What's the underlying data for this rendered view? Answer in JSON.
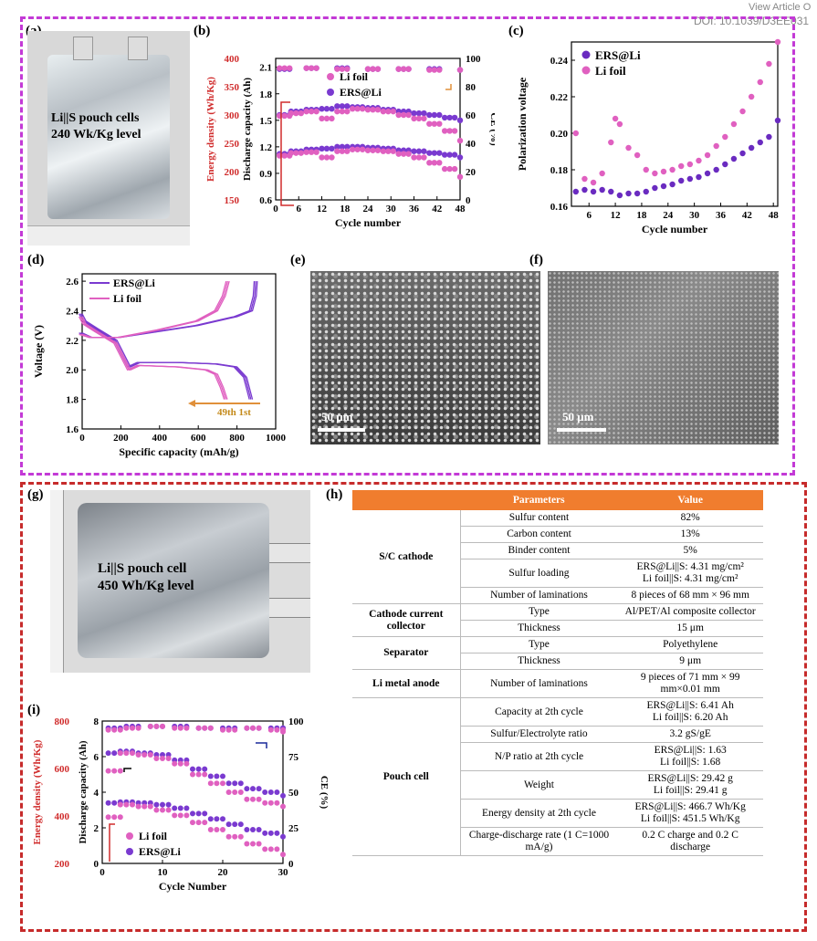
{
  "header": {
    "line1": "View Article O",
    "line2": "DOI: 10.1039/D3EE031"
  },
  "panels": {
    "a": {
      "label": "(a)",
      "caption1": "Li||S pouch cells",
      "caption2": "240 Wk/Kg level"
    },
    "b": {
      "label": "(b)"
    },
    "c": {
      "label": "(c)"
    },
    "d": {
      "label": "(d)"
    },
    "e": {
      "label": "(e)",
      "scale": "50 μm"
    },
    "f": {
      "label": "(f)",
      "scale": "50 μm"
    },
    "g": {
      "label": "(g)",
      "caption1": "Li||S pouch cell",
      "caption2": "450 Wh/Kg level"
    },
    "h": {
      "label": "(h)"
    },
    "i": {
      "label": "(i)"
    }
  },
  "table": {
    "headers": [
      "Parameters",
      "Value"
    ],
    "rows": [
      {
        "group": "S/C cathode",
        "span": 5,
        "param": "Sulfur content",
        "value": "82%"
      },
      {
        "param": "Carbon content",
        "value": "13%"
      },
      {
        "param": "Binder content",
        "value": "5%"
      },
      {
        "param": "Sulfur loading",
        "value": "ERS@Li||S: 4.31 mg/cm² / Li foil||S: 4.31 mg/cm²"
      },
      {
        "param": "Number of laminations",
        "value": "8 pieces of 68 mm × 96 mm"
      },
      {
        "group": "Cathode current collector",
        "span": 2,
        "param": "Type",
        "value": "Al/PET/Al composite collector"
      },
      {
        "param": "Thickness",
        "value": "15 μm"
      },
      {
        "group": "Separator",
        "span": 2,
        "param": "Type",
        "value": "Polyethylene"
      },
      {
        "param": "Thickness",
        "value": "9 μm"
      },
      {
        "group": "Li metal anode",
        "span": 1,
        "param": "Number of laminations",
        "value": "9 pieces of 71 mm × 99 mm×0.01 mm"
      },
      {
        "group": "Pouch cell",
        "span": 7,
        "param": "Capacity at 2th cycle",
        "value": "ERS@Li||S: 6.41 Ah / Li foil||S: 6.20 Ah"
      },
      {
        "param": "Sulfur/Electrolyte ratio",
        "value": "3.2 gS/gE"
      },
      {
        "param": "N/P ratio at 2th cycle",
        "value": "ERS@Li||S: 1.63 / Li foil||S: 1.68"
      },
      {
        "param": "Weight",
        "value": "ERS@Li||S: 29.42 g / Li foil||S: 29.41 g"
      },
      {
        "param": "Energy density at 2th cycle",
        "value": "ERS@Li||S: 466.7 Wh/Kg / Li foil||S: 451.5 Wh/Kg"
      },
      {
        "param": "Charge-discharge rate (1 C=1000 mA/g)",
        "value": "0.2 C charge and 0.2 C discharge"
      }
    ]
  },
  "chart_data": [
    {
      "id": "b",
      "type": "scatter",
      "xlabel": "Cycle number",
      "xlim": [
        0,
        48
      ],
      "xticks": [
        0,
        6,
        12,
        18,
        24,
        30,
        36,
        42,
        48
      ],
      "ylabel": "Discharge capacity (Ah)",
      "ylim": [
        0.6,
        2.2
      ],
      "yticks": [
        "0.6",
        "0.9",
        "1.2",
        "1.5",
        "1.8",
        "2.1"
      ],
      "y2label": "CE (%)",
      "y2ticks": [
        "0",
        "20",
        "40",
        "60",
        "80",
        "100"
      ],
      "y3label": "Energy density (Wh/Kg)",
      "y3ticks": [
        "150",
        "200",
        "250",
        "300",
        "350",
        "400"
      ],
      "legend": [
        "Li foil",
        "ERS@Li"
      ],
      "colors": {
        "Li foil": "#e060c0",
        "ERS@Li": "#7a3ad0"
      },
      "series": [
        {
          "name": "ERS@Li",
          "metric": "capacity",
          "x": [
            1,
            4,
            8,
            12,
            16,
            20,
            24,
            28,
            32,
            36,
            40,
            44,
            48
          ],
          "y": [
            1.12,
            1.15,
            1.17,
            1.18,
            1.2,
            1.2,
            1.19,
            1.18,
            1.16,
            1.15,
            1.13,
            1.11,
            1.08
          ]
        },
        {
          "name": "Li foil",
          "metric": "capacity",
          "x": [
            1,
            4,
            8,
            12,
            16,
            20,
            24,
            28,
            32,
            36,
            40,
            44,
            48
          ],
          "y": [
            1.1,
            1.13,
            1.14,
            1.08,
            1.15,
            1.17,
            1.16,
            1.15,
            1.12,
            1.08,
            1.02,
            0.95,
            0.86
          ]
        },
        {
          "name": "ERS@Li",
          "metric": "energy",
          "x": [
            1,
            4,
            8,
            12,
            16,
            20,
            24,
            28,
            32,
            36,
            40,
            44,
            48
          ],
          "y": [
            1.56,
            1.6,
            1.62,
            1.63,
            1.66,
            1.65,
            1.64,
            1.62,
            1.6,
            1.58,
            1.56,
            1.53,
            1.5
          ]
        },
        {
          "name": "Li foil",
          "metric": "energy",
          "x": [
            1,
            4,
            8,
            12,
            16,
            20,
            24,
            28,
            32,
            36,
            40,
            44,
            48
          ],
          "y": [
            1.55,
            1.58,
            1.6,
            1.52,
            1.6,
            1.63,
            1.62,
            1.6,
            1.56,
            1.52,
            1.46,
            1.38,
            1.27
          ]
        },
        {
          "name": "ERS@Li",
          "metric": "CE",
          "x": [
            1,
            8,
            16,
            24,
            32,
            40,
            48
          ],
          "y": [
            2.08,
            2.09,
            2.09,
            2.08,
            2.08,
            2.08,
            2.07
          ]
        },
        {
          "name": "Li foil",
          "metric": "CE",
          "x": [
            1,
            8,
            16,
            24,
            32,
            40,
            48
          ],
          "y": [
            2.09,
            2.09,
            2.08,
            2.08,
            2.08,
            2.07,
            2.07
          ]
        }
      ]
    },
    {
      "id": "c",
      "type": "scatter",
      "xlabel": "Cycle number",
      "xlim": [
        2,
        49
      ],
      "xticks": [
        6,
        12,
        18,
        24,
        30,
        36,
        42,
        48
      ],
      "ylabel": "Polarization voltage",
      "ylim": [
        0.16,
        0.25
      ],
      "yticks": [
        "0.16",
        "0.18",
        "0.20",
        "0.22",
        "0.24"
      ],
      "legend": [
        "ERS@Li",
        "Li foil"
      ],
      "colors": {
        "ERS@Li": "#6a2bc0",
        "Li foil": "#e060c0"
      },
      "series": [
        {
          "name": "ERS@Li",
          "x": [
            3,
            5,
            7,
            9,
            11,
            13,
            15,
            17,
            19,
            21,
            23,
            25,
            27,
            29,
            31,
            33,
            35,
            37,
            39,
            41,
            43,
            45,
            47,
            49
          ],
          "y": [
            0.168,
            0.169,
            0.168,
            0.169,
            0.168,
            0.166,
            0.167,
            0.167,
            0.168,
            0.17,
            0.171,
            0.172,
            0.174,
            0.175,
            0.176,
            0.178,
            0.18,
            0.183,
            0.186,
            0.189,
            0.192,
            0.195,
            0.198,
            0.207
          ]
        },
        {
          "name": "Li foil",
          "x": [
            3,
            5,
            7,
            9,
            11,
            12,
            13,
            15,
            17,
            19,
            21,
            23,
            25,
            27,
            29,
            31,
            33,
            35,
            37,
            39,
            41,
            43,
            45,
            47,
            49
          ],
          "y": [
            0.2,
            0.175,
            0.173,
            0.178,
            0.195,
            0.208,
            0.205,
            0.192,
            0.188,
            0.18,
            0.178,
            0.179,
            0.18,
            0.182,
            0.183,
            0.185,
            0.188,
            0.193,
            0.198,
            0.205,
            0.212,
            0.22,
            0.228,
            0.238,
            0.25
          ]
        }
      ]
    },
    {
      "id": "d",
      "type": "line",
      "xlabel": "Specific capacity (mAh/g)",
      "xlim": [
        0,
        1000
      ],
      "xticks": [
        0,
        200,
        400,
        600,
        800,
        1000
      ],
      "ylabel": "Voltage (V)",
      "ylim": [
        1.6,
        2.65
      ],
      "yticks": [
        "1.6",
        "1.8",
        "2.0",
        "2.2",
        "2.4",
        "2.6"
      ],
      "legend": [
        "ERS@Li",
        "Li foil"
      ],
      "annotation": "49th  1st",
      "colors": {
        "ERS@Li": "#7a3ad0",
        "Li foil": "#e060c0"
      },
      "series": [
        {
          "name": "ERS@Li",
          "branch": "discharge",
          "x": [
            0,
            20,
            80,
            180,
            250,
            300,
            500,
            700,
            800,
            850,
            880
          ],
          "y": [
            2.38,
            2.33,
            2.28,
            2.2,
            2.02,
            2.05,
            2.05,
            2.04,
            2.02,
            1.95,
            1.8
          ]
        },
        {
          "name": "ERS@Li",
          "branch": "charge",
          "x": [
            0,
            50,
            200,
            400,
            600,
            800,
            880,
            900,
            905
          ],
          "y": [
            2.25,
            2.22,
            2.22,
            2.26,
            2.3,
            2.36,
            2.4,
            2.5,
            2.6
          ]
        },
        {
          "name": "Li foil",
          "branch": "discharge",
          "x": [
            0,
            20,
            80,
            180,
            250,
            300,
            500,
            650,
            700,
            730,
            750
          ],
          "y": [
            2.36,
            2.31,
            2.26,
            2.18,
            2.0,
            2.03,
            2.02,
            2.0,
            1.97,
            1.88,
            1.8
          ]
        },
        {
          "name": "Li foil",
          "branch": "charge",
          "x": [
            0,
            50,
            200,
            400,
            600,
            700,
            740,
            760
          ],
          "y": [
            2.24,
            2.22,
            2.22,
            2.27,
            2.33,
            2.4,
            2.5,
            2.6
          ]
        }
      ]
    },
    {
      "id": "i",
      "type": "scatter",
      "xlabel": "Cycle Number",
      "xlim": [
        0,
        30
      ],
      "xticks": [
        0,
        10,
        20,
        30
      ],
      "ylabel": "Discharge capacity (Ah)",
      "ylim": [
        0,
        8
      ],
      "yticks": [
        "0",
        "2",
        "4",
        "6",
        "8"
      ],
      "y2label": "CE (%)",
      "y2ticks": [
        "0",
        "25",
        "50",
        "75",
        "100"
      ],
      "y3label": "Energy density (Wh/Kg)",
      "y3ticks": [
        "200",
        "400",
        "600",
        "800"
      ],
      "legend": [
        "Li foil",
        "ERS@Li"
      ],
      "colors": {
        "Li foil": "#e060c0",
        "ERS@Li": "#7a3ad0"
      },
      "series": [
        {
          "name": "ERS@Li",
          "metric": "energy",
          "x": [
            1,
            3,
            6,
            9,
            12,
            15,
            18,
            21,
            24,
            27,
            30
          ],
          "y": [
            6.2,
            6.3,
            6.2,
            6.1,
            5.8,
            5.3,
            4.9,
            4.5,
            4.2,
            4.0,
            3.8
          ]
        },
        {
          "name": "Li foil",
          "metric": "energy",
          "x": [
            1,
            3,
            6,
            9,
            12,
            15,
            18,
            21,
            24,
            27,
            30
          ],
          "y": [
            5.2,
            6.2,
            6.1,
            5.9,
            5.6,
            5.0,
            4.5,
            4.0,
            3.6,
            3.4,
            3.2
          ]
        },
        {
          "name": "ERS@Li",
          "metric": "capacity",
          "x": [
            1,
            3,
            6,
            9,
            12,
            15,
            18,
            21,
            24,
            27,
            30
          ],
          "y": [
            3.4,
            3.45,
            3.4,
            3.3,
            3.1,
            2.8,
            2.5,
            2.2,
            1.9,
            1.7,
            1.5
          ]
        },
        {
          "name": "Li foil",
          "metric": "capacity",
          "x": [
            1,
            3,
            6,
            9,
            12,
            15,
            18,
            21,
            24,
            27,
            30
          ],
          "y": [
            2.6,
            3.3,
            3.2,
            3.0,
            2.7,
            2.3,
            1.9,
            1.5,
            1.1,
            0.8,
            0.5
          ]
        },
        {
          "name": "ERS@Li",
          "metric": "CE",
          "x": [
            1,
            4,
            8,
            12,
            16,
            20,
            24,
            28,
            30
          ],
          "y": [
            7.6,
            7.7,
            7.7,
            7.7,
            7.6,
            7.6,
            7.6,
            7.6,
            7.6
          ]
        },
        {
          "name": "Li foil",
          "metric": "CE",
          "x": [
            1,
            4,
            8,
            12,
            16,
            20,
            24,
            28,
            30
          ],
          "y": [
            7.5,
            7.6,
            7.7,
            7.6,
            7.6,
            7.5,
            7.6,
            7.5,
            7.4
          ]
        }
      ]
    }
  ]
}
